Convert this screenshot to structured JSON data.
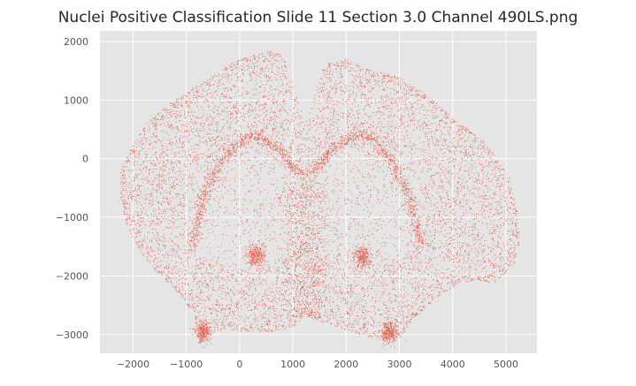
{
  "chart_data": {
    "type": "scatter",
    "title": "Nuclei Positive Classification Slide  11 Section 3.0 Channel 490LS.png",
    "xlabel": "",
    "ylabel": "",
    "xlim": [
      -2620,
      5580
    ],
    "ylim": [
      -3320,
      2180
    ],
    "x_ticks": [
      -2000,
      -1000,
      0,
      1000,
      2000,
      3000,
      4000,
      5000
    ],
    "x_tick_labels": [
      "−2000",
      "−1000",
      "0",
      "1000",
      "2000",
      "3000",
      "4000",
      "5000"
    ],
    "y_ticks": [
      2000,
      1000,
      0,
      -1000,
      -2000,
      -3000
    ],
    "y_tick_labels": [
      "2000",
      "1000",
      "0",
      "−1000",
      "−2000",
      "−3000"
    ],
    "grid": true,
    "legend": "none",
    "background_color": "#e5e5e5",
    "marker_color": "#e24a33",
    "point_density": "approximately 20000 points forming a coronal brain-section outline",
    "density_features": {
      "outer_outline": "roughly symmetric left and right hemispheres joined at the midline around x = 1200, spanning x from -2300 to 5200 and y from -3100 to 1900",
      "dense_arc": "a dense band arcing from about (-800, -1500) up through (300, 400), dipping to (1200, -250) and rising to (2500, 400), then down to (3300, -1500)",
      "dense_clusters": [
        {
          "x": 300,
          "y": -1650
        },
        {
          "x": 2300,
          "y": -1680
        },
        {
          "x": -700,
          "y": -2950
        },
        {
          "x": 2800,
          "y": -2950
        }
      ],
      "sparse_interior": "a lower-density region in the interior of each hemisphere, below the dense arc"
    }
  }
}
